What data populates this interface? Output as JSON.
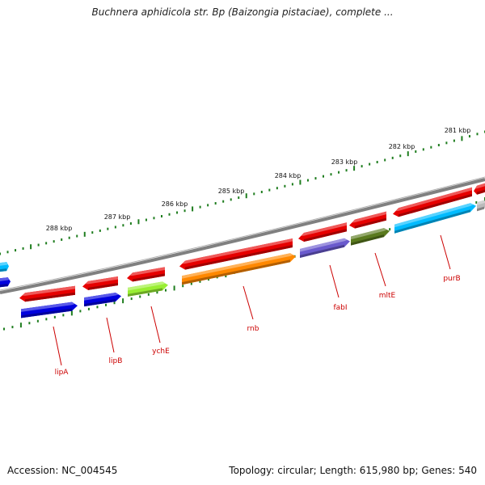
{
  "title": "Buchnera aphidicola str. Bp (Baizongia pistaciae), complete ...",
  "footer": {
    "accession": "Accession: NC_004545",
    "summary": "Topology: circular; Length: 615,980 bp; Genes: 540"
  },
  "scale_labels": [
    "288 kbp",
    "287 kbp",
    "286 kbp",
    "285 kbp",
    "284 kbp",
    "283 kbp",
    "282 kbp",
    "281 kbp"
  ],
  "gene_labels": [
    "lipA",
    "lipB",
    "ychE",
    "rnb",
    "fabI",
    "mltE",
    "purB"
  ],
  "colors": {
    "backbone": "#808080",
    "scale_ticks": "#1e7d1e",
    "label_red": "#cc0000",
    "feature_red": "#e60000",
    "feature_blue": "#0000dd",
    "feature_lime": "#99ee33",
    "feature_orange": "#ff8800",
    "feature_slate": "#6a5acd",
    "feature_olive": "#5a7a1e",
    "feature_sky": "#00bbff",
    "feature_gray": "#bbbbbb"
  }
}
